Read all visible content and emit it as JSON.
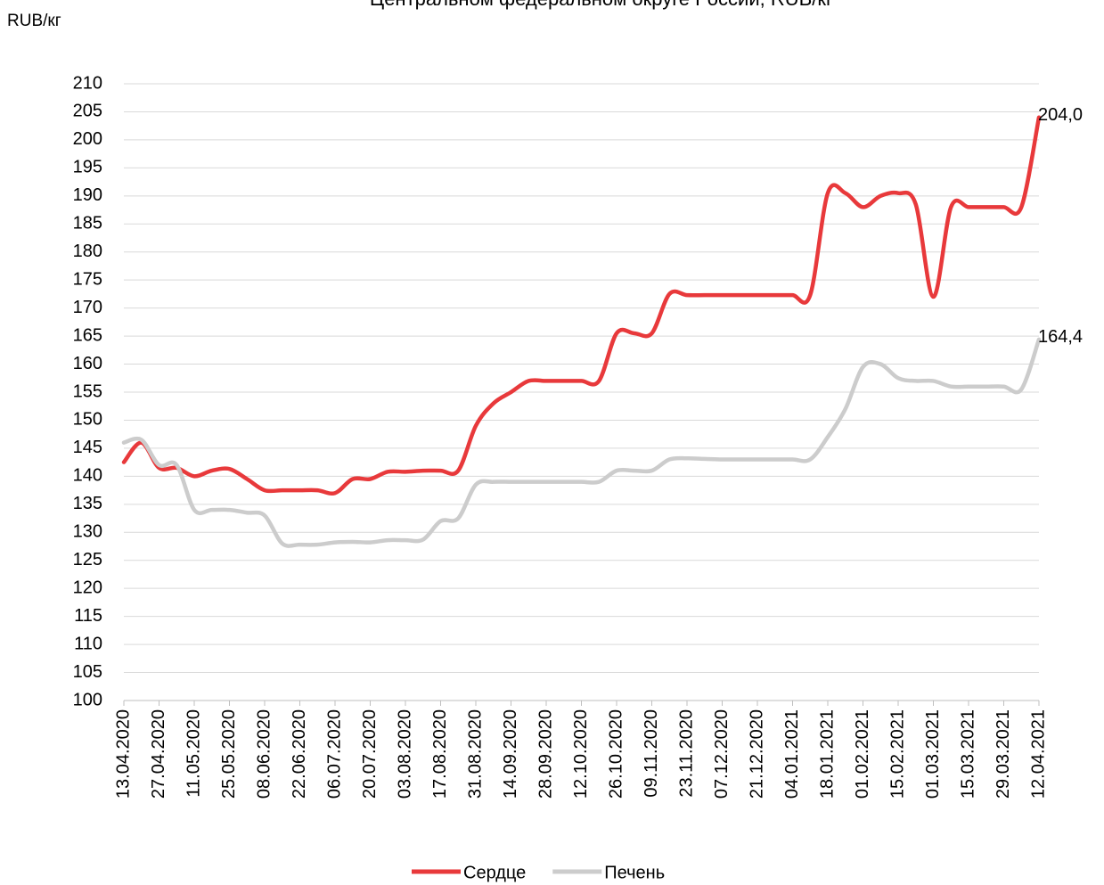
{
  "chart_data": {
    "type": "line",
    "title": "Центральном федеральном округе России, RUB/кг",
    "y_axis_label": "RUB/кг",
    "categories": [
      "13.04.2020",
      null,
      "27.04.2020",
      null,
      "11.05.2020",
      null,
      "25.05.2020",
      null,
      "08.06.2020",
      null,
      "22.06.2020",
      null,
      "06.07.2020",
      null,
      "20.07.2020",
      null,
      "03.08.2020",
      null,
      "17.08.2020",
      null,
      "31.08.2020",
      null,
      "14.09.2020",
      null,
      "28.09.2020",
      null,
      "12.10.2020",
      null,
      "26.10.2020",
      null,
      "09.11.2020",
      null,
      "23.11.2020",
      null,
      "07.12.2020",
      null,
      "21.12.2020",
      null,
      "04.01.2021",
      null,
      "18.01.2021",
      null,
      "01.02.2021",
      null,
      "15.02.2021",
      null,
      "01.03.2021",
      null,
      "15.03.2021",
      null,
      "29.03.2021",
      null,
      "12.04.2021"
    ],
    "series": [
      {
        "name": "Сердце",
        "color": "#e8393b",
        "values": [
          142.5,
          146,
          141.5,
          141.5,
          140,
          141,
          141.3,
          139.5,
          137.5,
          137.5,
          137.5,
          137.5,
          137,
          139.5,
          139.5,
          140.8,
          140.8,
          141,
          141,
          141,
          149,
          153,
          155,
          157,
          157,
          157,
          157,
          157,
          165.5,
          165.5,
          165.5,
          172.5,
          172.3,
          172.3,
          172.3,
          172.3,
          172.3,
          172.3,
          172.3,
          172.3,
          190.5,
          190.5,
          188,
          190,
          190.5,
          188.5,
          172,
          188,
          188,
          188,
          188,
          188,
          204.0
        ],
        "value_labels": [
          null,
          null,
          null,
          null,
          null,
          null,
          null,
          null,
          null,
          null,
          null,
          null,
          null,
          null,
          null,
          null,
          null,
          null,
          null,
          null,
          null,
          null,
          null,
          null,
          null,
          null,
          null,
          null,
          null,
          null,
          null,
          null,
          null,
          null,
          null,
          null,
          null,
          null,
          null,
          null,
          null,
          null,
          null,
          null,
          null,
          null,
          null,
          null,
          null,
          null,
          null,
          null,
          "204,0"
        ]
      },
      {
        "name": "Печень",
        "color": "#cccccc",
        "values": [
          146,
          146.5,
          142,
          142,
          134,
          134,
          134,
          133.5,
          133,
          128,
          127.8,
          127.8,
          128.2,
          128.3,
          128.2,
          128.6,
          128.6,
          128.7,
          132,
          132.5,
          138.5,
          139,
          139,
          139,
          139,
          139,
          139,
          139,
          141,
          141,
          141,
          143,
          143.2,
          143.1,
          143,
          143,
          143,
          143,
          143,
          143,
          147,
          152,
          159.5,
          160,
          157.5,
          157,
          157,
          156,
          156,
          156,
          156,
          155.5,
          164.4
        ],
        "value_labels": [
          null,
          null,
          null,
          null,
          null,
          null,
          null,
          null,
          null,
          null,
          null,
          null,
          null,
          null,
          null,
          null,
          null,
          null,
          null,
          null,
          null,
          null,
          null,
          null,
          null,
          null,
          null,
          null,
          null,
          null,
          null,
          null,
          null,
          null,
          null,
          null,
          null,
          null,
          null,
          null,
          null,
          null,
          null,
          null,
          null,
          null,
          null,
          null,
          null,
          null,
          null,
          null,
          "164,4"
        ]
      }
    ],
    "ylim": [
      100,
      210
    ],
    "yticks": [
      100,
      105,
      110,
      115,
      120,
      125,
      130,
      135,
      140,
      145,
      150,
      155,
      160,
      165,
      170,
      175,
      180,
      185,
      190,
      195,
      200,
      205,
      210
    ],
    "grid": true,
    "legend": "bottom"
  }
}
